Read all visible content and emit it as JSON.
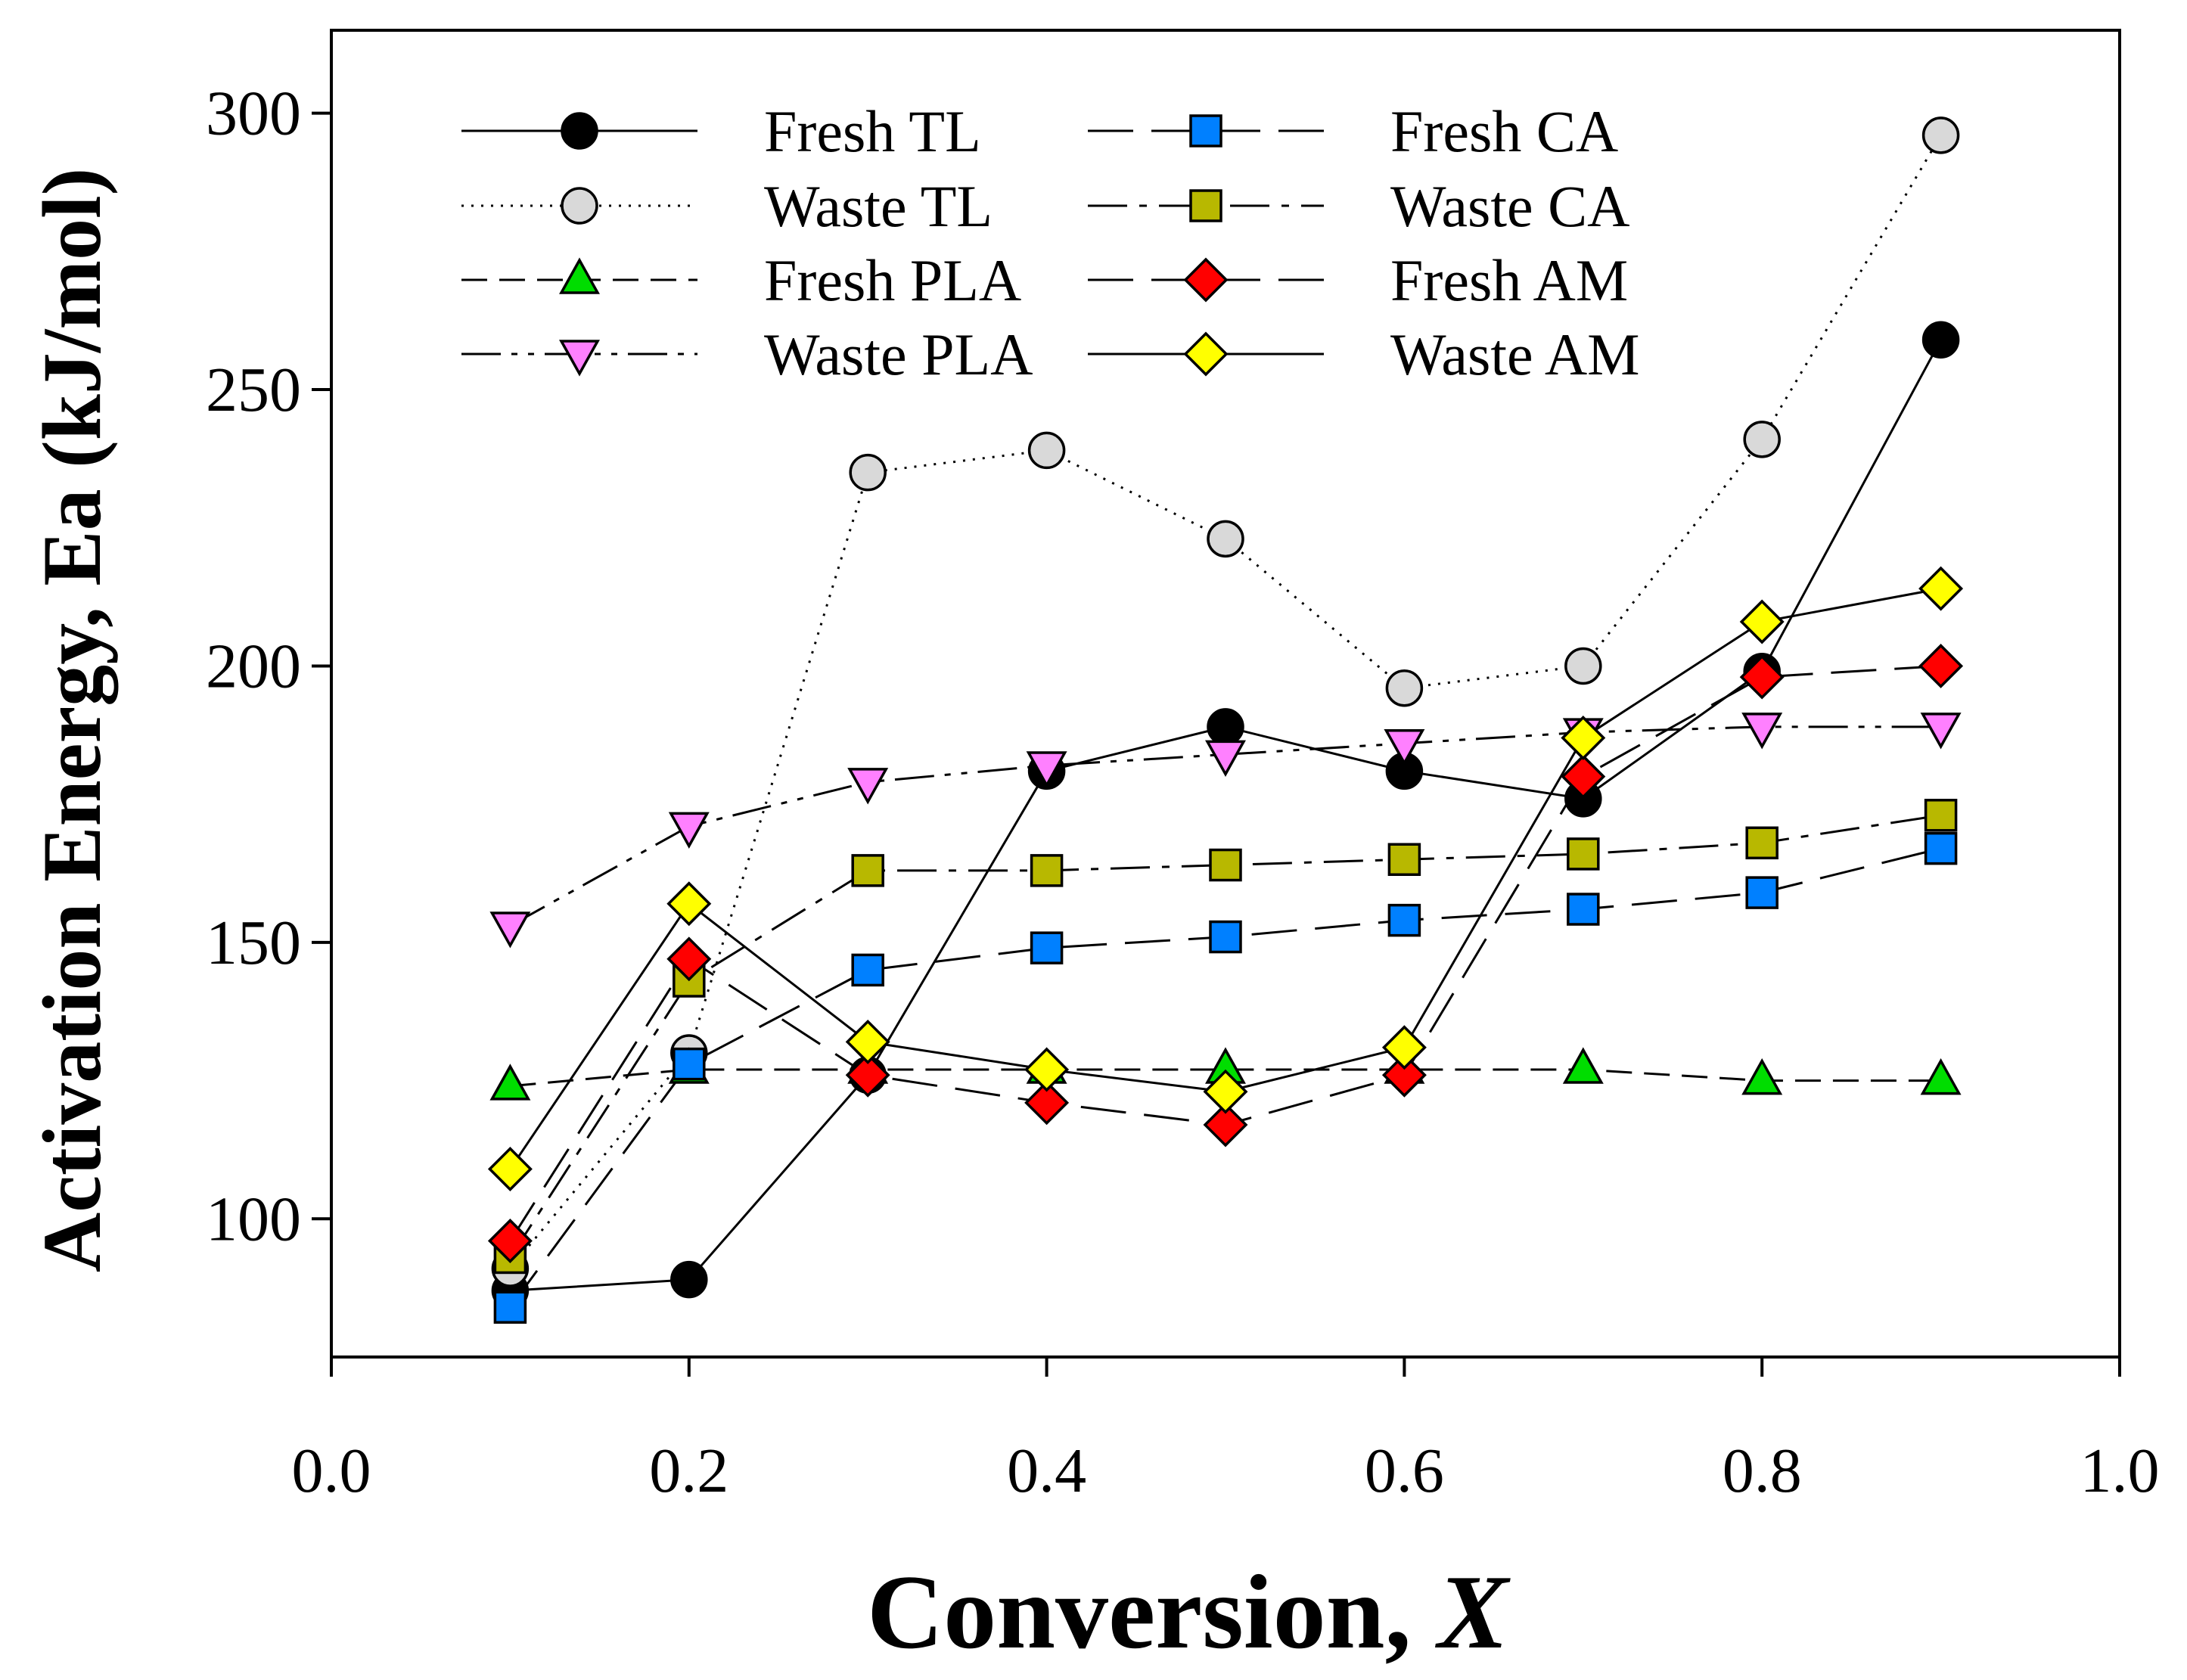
{
  "chart_data": {
    "type": "line",
    "xlabel": "Conversion, ",
    "xlabel_italic": "X",
    "ylabel": "Activation Energy, Ea (kJ/mol)",
    "xlim": [
      0.0,
      1.0
    ],
    "ylim": [
      75,
      315
    ],
    "xticks": [
      0.0,
      0.2,
      0.4,
      0.6,
      0.8,
      1.0
    ],
    "xtick_labels": [
      "0.0",
      "0.2",
      "0.4",
      "0.6",
      "0.8",
      "1.0"
    ],
    "yticks": [
      100,
      150,
      200,
      250,
      300
    ],
    "ytick_labels": [
      "100",
      "150",
      "200",
      "250",
      "300"
    ],
    "grid": false,
    "legend_position": "top",
    "x": [
      0.1,
      0.2,
      0.3,
      0.4,
      0.5,
      0.6,
      0.7,
      0.8,
      0.9
    ],
    "series": [
      {
        "name": "Fresh TL",
        "marker": "circle",
        "fill": "#000000",
        "dash": "solid",
        "values": [
          87,
          89,
          126,
          181,
          189,
          181,
          176,
          199,
          259
        ]
      },
      {
        "name": "Waste TL",
        "marker": "circle",
        "fill": "#d9d9d9",
        "dash": "dotted",
        "values": [
          91,
          130,
          235,
          239,
          223,
          196,
          200,
          241,
          296
        ]
      },
      {
        "name": "Fresh PLA",
        "marker": "triangle-up",
        "fill": "#00dd00",
        "dash": "dashed",
        "values": [
          124,
          127,
          127,
          127,
          127,
          127,
          127,
          125,
          125
        ]
      },
      {
        "name": "Waste PLA",
        "marker": "triangle-down",
        "fill": "#ff80ff",
        "dash": "dashdotdot",
        "values": [
          153,
          171,
          179,
          182,
          184,
          186,
          188,
          189,
          189
        ]
      },
      {
        "name": "Fresh CA",
        "marker": "square",
        "fill": "#0080ff",
        "dash": "longdash",
        "values": [
          84,
          128,
          145,
          149,
          151,
          154,
          156,
          159,
          167
        ]
      },
      {
        "name": "Waste CA",
        "marker": "square",
        "fill": "#b8b800",
        "dash": "dashdot",
        "values": [
          93,
          143,
          163,
          163,
          164,
          165,
          166,
          168,
          173
        ]
      },
      {
        "name": "Fresh AM",
        "marker": "diamond",
        "fill": "#ff0000",
        "dash": "longdash",
        "values": [
          96,
          147,
          126,
          121,
          117,
          126,
          180,
          198,
          200
        ]
      },
      {
        "name": "Waste AM",
        "marker": "diamond",
        "fill": "#ffff00",
        "dash": "solid",
        "values": [
          109,
          157,
          132,
          127,
          123,
          131,
          187,
          208,
          214
        ]
      }
    ]
  }
}
